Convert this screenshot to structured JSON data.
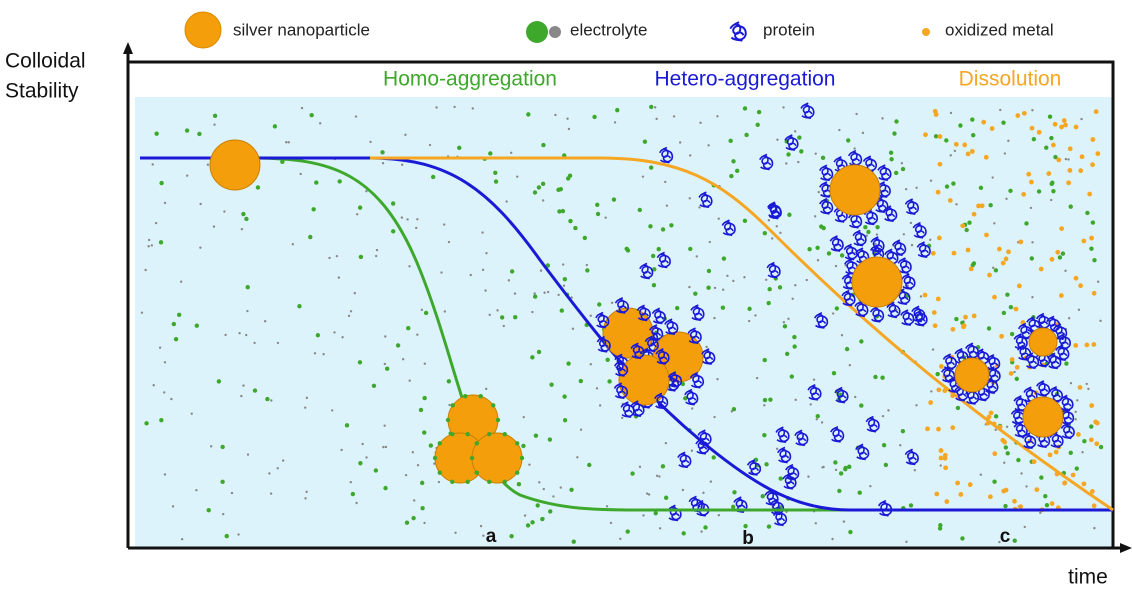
{
  "legend": [
    {
      "label": "silver nanoparticle"
    },
    {
      "label": "electrolyte"
    },
    {
      "label": "protein"
    },
    {
      "label": "oxidized metal"
    }
  ],
  "y_axis_label": [
    "Colloidal",
    "Stability"
  ],
  "x_axis_label": "time",
  "phases": [
    {
      "label": "Homo-aggregation"
    },
    {
      "label": "Hetero-aggregation"
    },
    {
      "label": "Dissolution"
    }
  ],
  "stage_markers": [
    "a",
    "b",
    "c"
  ]
}
